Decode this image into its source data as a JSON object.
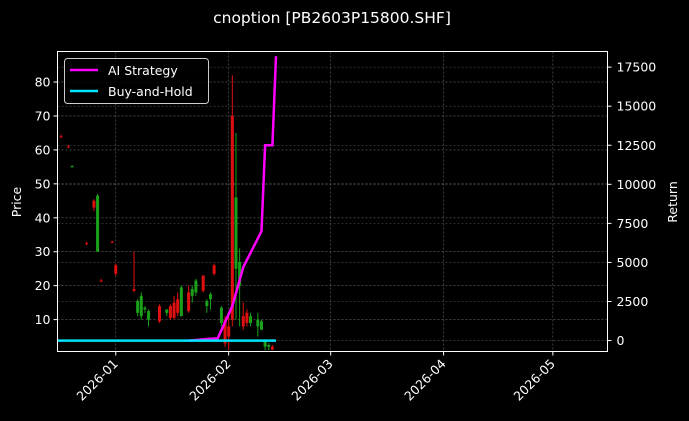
{
  "chart_data": {
    "type": "candlestick+line",
    "title": "cnoption [PB2603P15800.SHF]",
    "xlabel": "",
    "ylabel_left": "Price",
    "ylabel_right": "Return",
    "x_ticks": [
      "2026-01",
      "2026-02",
      "2026-03",
      "2026-04",
      "2026-05"
    ],
    "y_left_ticks": [
      10,
      20,
      30,
      40,
      50,
      60,
      70,
      80
    ],
    "y_right_ticks": [
      0,
      2500,
      5000,
      7500,
      10000,
      12500,
      15000,
      17500
    ],
    "ylim_left": [
      0.6,
      89
    ],
    "ylim_right": [
      -700,
      18500
    ],
    "xlim": [
      "2025-12-16",
      "2026-05-16"
    ],
    "grid": true,
    "legend_position": "upper left",
    "legend": [
      {
        "label": "AI Strategy",
        "color": "#ff00ff"
      },
      {
        "label": "Buy-and-Hold",
        "color": "#00e5ff"
      }
    ],
    "candles": [
      {
        "date": "2025-12-17",
        "open": 64,
        "high": 64.5,
        "low": 63.5,
        "close": 63.8
      },
      {
        "date": "2025-12-19",
        "open": 61,
        "high": 61.5,
        "low": 60.5,
        "close": 60.8
      },
      {
        "date": "2025-12-20",
        "open": 55,
        "high": 55.5,
        "low": 54.8,
        "close": 55.2
      },
      {
        "date": "2025-12-24",
        "open": 32.5,
        "high": 33,
        "low": 32,
        "close": 32.2
      },
      {
        "date": "2025-12-26",
        "open": 45,
        "high": 45.5,
        "low": 42,
        "close": 43
      },
      {
        "date": "2025-12-27",
        "open": 30,
        "high": 47,
        "low": 30,
        "close": 46.5
      },
      {
        "date": "2025-12-28",
        "open": 21.5,
        "high": 22,
        "low": 21,
        "close": 21.2
      },
      {
        "date": "2025-12-31",
        "open": 33,
        "high": 33.2,
        "low": 32.5,
        "close": 32.8
      },
      {
        "date": "2026-01-01",
        "open": 26,
        "high": 26.5,
        "low": 23,
        "close": 23.5
      },
      {
        "date": "2026-01-06",
        "open": 19,
        "high": 30,
        "low": 18,
        "close": 18.5
      },
      {
        "date": "2026-01-07",
        "open": 12,
        "high": 16,
        "low": 11,
        "close": 15.5
      },
      {
        "date": "2026-01-08",
        "open": 11,
        "high": 18,
        "low": 10,
        "close": 17
      },
      {
        "date": "2026-01-09",
        "open": 13,
        "high": 14,
        "low": 12,
        "close": 13.5
      },
      {
        "date": "2026-01-10",
        "open": 10,
        "high": 13,
        "low": 8,
        "close": 12.5
      },
      {
        "date": "2026-01-13",
        "open": 14,
        "high": 14.5,
        "low": 9,
        "close": 9.5
      },
      {
        "date": "2026-01-15",
        "open": 12,
        "high": 13,
        "low": 11,
        "close": 13
      },
      {
        "date": "2026-01-16",
        "open": 14,
        "high": 14.5,
        "low": 10,
        "close": 10.5
      },
      {
        "date": "2026-01-17",
        "open": 15,
        "high": 17,
        "low": 10,
        "close": 10.5
      },
      {
        "date": "2026-01-18",
        "open": 16,
        "high": 18,
        "low": 11,
        "close": 12
      },
      {
        "date": "2026-01-19",
        "open": 11,
        "high": 20,
        "low": 11,
        "close": 19.5
      },
      {
        "date": "2026-01-21",
        "open": 18,
        "high": 20,
        "low": 12,
        "close": 12.5
      },
      {
        "date": "2026-01-22",
        "open": 17,
        "high": 20,
        "low": 15,
        "close": 19
      },
      {
        "date": "2026-01-23",
        "open": 18,
        "high": 22,
        "low": 17,
        "close": 21.5
      },
      {
        "date": "2026-01-25",
        "open": 23,
        "high": 23,
        "low": 18,
        "close": 18.5
      },
      {
        "date": "2026-01-26",
        "open": 14,
        "high": 16,
        "low": 12,
        "close": 15.5
      },
      {
        "date": "2026-01-27",
        "open": 16,
        "high": 18,
        "low": 13,
        "close": 17.5
      },
      {
        "date": "2026-01-28",
        "open": 26,
        "high": 26.5,
        "low": 23,
        "close": 23.5
      },
      {
        "date": "2026-01-30",
        "open": 9,
        "high": 14,
        "low": 8,
        "close": 13.5
      },
      {
        "date": "2026-01-31",
        "open": 10,
        "high": 11,
        "low": 2,
        "close": 3
      },
      {
        "date": "2026-02-01",
        "open": 8,
        "high": 12,
        "low": 1,
        "close": 5
      },
      {
        "date": "2026-02-02",
        "open": 70,
        "high": 82,
        "low": 8,
        "close": 10
      },
      {
        "date": "2026-02-03",
        "open": 25,
        "high": 65,
        "low": 10,
        "close": 46
      },
      {
        "date": "2026-02-04",
        "open": 20,
        "high": 31,
        "low": 8,
        "close": 27
      },
      {
        "date": "2026-02-05",
        "open": 11,
        "high": 15,
        "low": 7,
        "close": 8
      },
      {
        "date": "2026-02-06",
        "open": 12,
        "high": 13,
        "low": 8,
        "close": 9
      },
      {
        "date": "2026-02-07",
        "open": 9,
        "high": 12,
        "low": 8,
        "close": 11
      },
      {
        "date": "2026-02-09",
        "open": 8,
        "high": 12,
        "low": 5,
        "close": 10
      },
      {
        "date": "2026-02-10",
        "open": 7,
        "high": 10,
        "low": 7,
        "close": 9.5
      },
      {
        "date": "2026-02-11",
        "open": 2,
        "high": 4,
        "low": 1,
        "close": 3.5
      },
      {
        "date": "2026-02-12",
        "open": 2,
        "high": 3,
        "low": 1,
        "close": 2.5
      },
      {
        "date": "2026-02-13",
        "open": 2,
        "high": 2.5,
        "low": 1,
        "close": 1.2
      }
    ],
    "series": [
      {
        "name": "AI Strategy",
        "axis": "right",
        "color": "#ff00ff",
        "x": [
          "2026-01-21",
          "2026-01-26",
          "2026-01-29",
          "2026-02-02",
          "2026-02-05",
          "2026-02-10",
          "2026-02-11",
          "2026-02-13",
          "2026-02-14"
        ],
        "values": [
          0,
          100,
          150,
          2200,
          4700,
          7000,
          12500,
          12500,
          18200
        ]
      },
      {
        "name": "Buy-and-Hold",
        "axis": "right",
        "color": "#00e5ff",
        "x": [
          "2025-12-16",
          "2026-02-14"
        ],
        "values": [
          0,
          0
        ]
      }
    ]
  }
}
